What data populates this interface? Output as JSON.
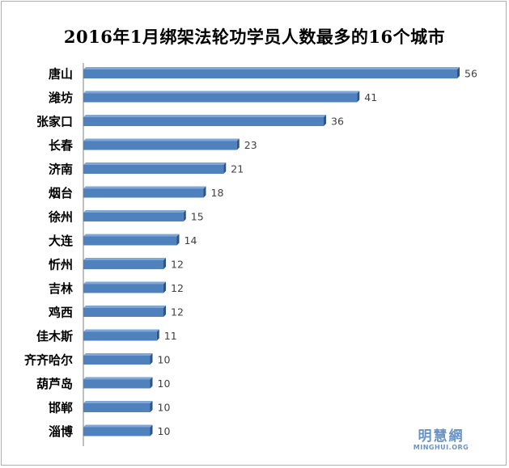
{
  "chart_data": {
    "type": "bar",
    "orientation": "horizontal",
    "title": "2016年1月绑架法轮功学员人数最多的16个城市",
    "categories": [
      "唐山",
      "潍坊",
      "张家口",
      "长春",
      "济南",
      "烟台",
      "徐州",
      "大连",
      "忻州",
      "吉林",
      "鸡西",
      "佳木斯",
      "齐齐哈尔",
      "葫芦岛",
      "邯郸",
      "淄博"
    ],
    "values": [
      56,
      41,
      36,
      23,
      21,
      18,
      15,
      14,
      12,
      12,
      12,
      11,
      10,
      10,
      10,
      10
    ],
    "xlim": [
      0,
      56
    ],
    "grid": false,
    "legend": "none",
    "bar_color": "#4f81bd",
    "bar_top_color": "#7ea7d8",
    "bar_side_color": "#2c5486"
  },
  "watermark": {
    "cn": "明慧網",
    "en": "MINGHUI.ORG"
  }
}
